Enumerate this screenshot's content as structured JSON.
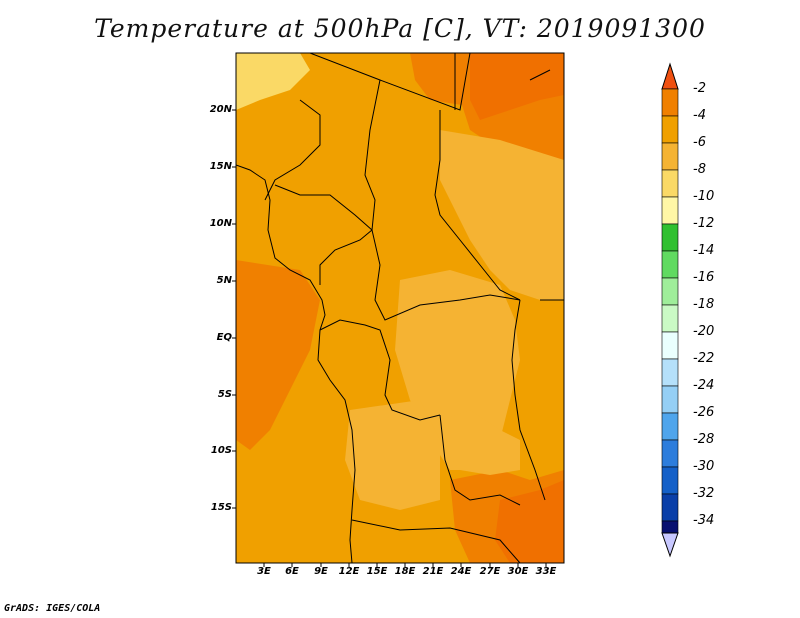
{
  "title": "Temperature at 500hPa [C], VT: 2019091300",
  "variable": "Temperature",
  "level": "500hPa",
  "units": "C",
  "valid_time": "2019091300",
  "lat_labels": [
    "20N",
    "15N",
    "10N",
    "5N",
    "EQ",
    "5S",
    "10S",
    "15S"
  ],
  "lon_labels": [
    "3E",
    "6E",
    "9E",
    "12E",
    "15E",
    "18E",
    "21E",
    "24E",
    "27E",
    "30E",
    "33E"
  ],
  "colorbar": {
    "labels": [
      "-2",
      "-4",
      "-6",
      "-8",
      "-10",
      "-12",
      "-14",
      "-16",
      "-18",
      "-20",
      "-22",
      "-24",
      "-26",
      "-28",
      "-30",
      "-32",
      "-34"
    ],
    "colors": [
      "#f05010",
      "#f08000",
      "#f0a000",
      "#f5b333",
      "#fad966",
      "#fff7a6",
      "#30c030",
      "#60da60",
      "#9fee9a",
      "#cafac5",
      "#eafffe",
      "#b5e0fa",
      "#95cff5",
      "#4fa5ec",
      "#2d7ddc",
      "#1460c8",
      "#0a3fa8",
      "#081070",
      "#c8c8ff"
    ]
  },
  "footer": "GrADS: IGES/COLA"
}
